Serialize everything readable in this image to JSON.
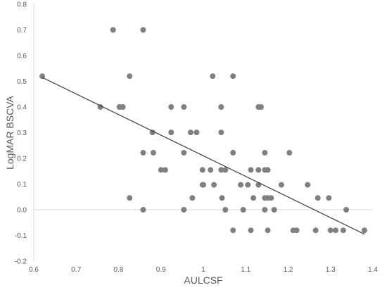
{
  "chart_data": {
    "type": "scatter",
    "title": "",
    "xlabel": "AULCSF",
    "ylabel": "LogMAR BSCVA",
    "xlim": [
      0.6,
      1.4
    ],
    "ylim": [
      -0.2,
      0.8
    ],
    "xticks": [
      "0.6",
      "0.7",
      "0.8",
      "0.9",
      "1",
      "1.1",
      "1.2",
      "1.3",
      "1.4"
    ],
    "yticks": [
      "-0.2",
      "-0.1",
      "0.0",
      "0.1",
      "0.2",
      "0.3",
      "0.4",
      "0.5",
      "0.6",
      "0.7",
      "0.8"
    ],
    "grid": false,
    "legend": "none",
    "marker_color": "#808080",
    "trendline_color": "#404040",
    "trendline": {
      "x": [
        0.62,
        1.38
      ],
      "y": [
        0.515,
        -0.095
      ]
    },
    "points": [
      {
        "x": 0.62,
        "y": 0.52
      },
      {
        "x": 0.757,
        "y": 0.4
      },
      {
        "x": 0.787,
        "y": 0.7
      },
      {
        "x": 0.802,
        "y": 0.4
      },
      {
        "x": 0.81,
        "y": 0.4
      },
      {
        "x": 0.826,
        "y": 0.52
      },
      {
        "x": 0.826,
        "y": 0.046
      },
      {
        "x": 0.858,
        "y": 0.7
      },
      {
        "x": 0.858,
        "y": 0.222
      },
      {
        "x": 0.858,
        "y": 0.0
      },
      {
        "x": 0.88,
        "y": 0.301
      },
      {
        "x": 0.882,
        "y": 0.222
      },
      {
        "x": 0.9,
        "y": 0.155
      },
      {
        "x": 0.91,
        "y": 0.155
      },
      {
        "x": 0.924,
        "y": 0.4
      },
      {
        "x": 0.924,
        "y": 0.301
      },
      {
        "x": 0.954,
        "y": 0.4
      },
      {
        "x": 0.954,
        "y": 0.222
      },
      {
        "x": 0.954,
        "y": 0.0
      },
      {
        "x": 0.97,
        "y": 0.301
      },
      {
        "x": 0.974,
        "y": 0.046
      },
      {
        "x": 0.984,
        "y": 0.301
      },
      {
        "x": 0.998,
        "y": 0.155
      },
      {
        "x": 0.998,
        "y": 0.097
      },
      {
        "x": 1.0,
        "y": 0.097
      },
      {
        "x": 1.017,
        "y": 0.155
      },
      {
        "x": 1.022,
        "y": 0.52
      },
      {
        "x": 1.025,
        "y": 0.097
      },
      {
        "x": 1.042,
        "y": 0.4
      },
      {
        "x": 1.042,
        "y": 0.301
      },
      {
        "x": 1.042,
        "y": 0.155
      },
      {
        "x": 1.044,
        "y": 0.046
      },
      {
        "x": 1.052,
        "y": 0.155
      },
      {
        "x": 1.052,
        "y": 0.0
      },
      {
        "x": 1.07,
        "y": 0.52
      },
      {
        "x": 1.07,
        "y": 0.222
      },
      {
        "x": 1.07,
        "y": -0.08
      },
      {
        "x": 1.088,
        "y": 0.097
      },
      {
        "x": 1.094,
        "y": 0.0
      },
      {
        "x": 1.105,
        "y": 0.097
      },
      {
        "x": 1.112,
        "y": 0.155
      },
      {
        "x": 1.112,
        "y": -0.08
      },
      {
        "x": 1.118,
        "y": 0.046
      },
      {
        "x": 1.13,
        "y": 0.4
      },
      {
        "x": 1.13,
        "y": 0.155
      },
      {
        "x": 1.13,
        "y": 0.097
      },
      {
        "x": 1.136,
        "y": 0.4
      },
      {
        "x": 1.145,
        "y": 0.222
      },
      {
        "x": 1.145,
        "y": 0.155
      },
      {
        "x": 1.145,
        "y": 0.046
      },
      {
        "x": 1.145,
        "y": 0.0
      },
      {
        "x": 1.152,
        "y": 0.155
      },
      {
        "x": 1.152,
        "y": 0.046
      },
      {
        "x": 1.152,
        "y": -0.08
      },
      {
        "x": 1.16,
        "y": 0.046
      },
      {
        "x": 1.167,
        "y": 0.0
      },
      {
        "x": 1.184,
        "y": 0.097
      },
      {
        "x": 1.203,
        "y": 0.222
      },
      {
        "x": 1.212,
        "y": -0.08
      },
      {
        "x": 1.22,
        "y": -0.08
      },
      {
        "x": 1.246,
        "y": 0.097
      },
      {
        "x": 1.265,
        "y": -0.08
      },
      {
        "x": 1.27,
        "y": 0.046
      },
      {
        "x": 1.296,
        "y": 0.046
      },
      {
        "x": 1.3,
        "y": -0.08
      },
      {
        "x": 1.312,
        "y": -0.08
      },
      {
        "x": 1.33,
        "y": -0.08
      },
      {
        "x": 1.337,
        "y": 0.0
      },
      {
        "x": 1.38,
        "y": -0.08
      }
    ]
  }
}
